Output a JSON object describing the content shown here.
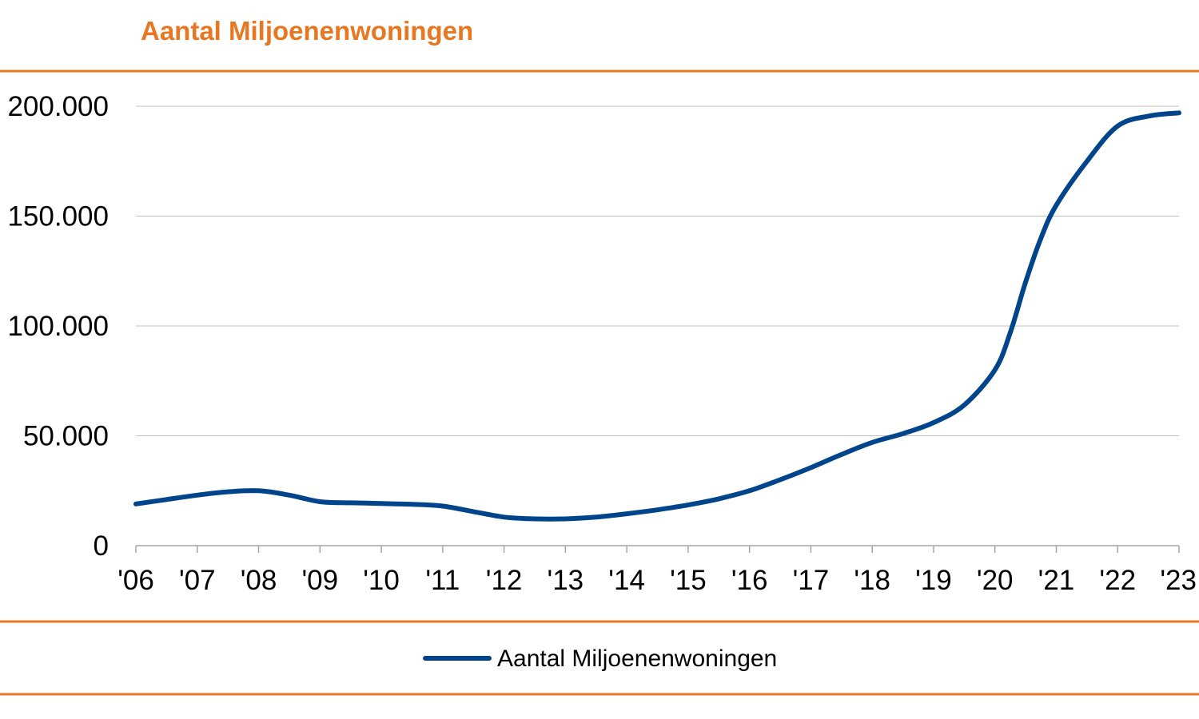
{
  "chart_data": {
    "type": "line",
    "title": "Aantal Miljoenenwoningen",
    "xlabel": "",
    "ylabel": "",
    "categories": [
      "'06",
      "'07",
      "'08",
      "'09",
      "'10",
      "'11",
      "'12",
      "'13",
      "'14",
      "'15",
      "'16",
      "'17",
      "'18",
      "'19",
      "'20",
      "'21",
      "'22",
      "'23"
    ],
    "x": [
      2006,
      2006.5,
      2007,
      2007.5,
      2008,
      2008.5,
      2009,
      2009.5,
      2010,
      2010.5,
      2011,
      2011.5,
      2012,
      2012.5,
      2013,
      2013.5,
      2014,
      2014.5,
      2015,
      2015.5,
      2016,
      2016.5,
      2017,
      2017.5,
      2018,
      2018.5,
      2019,
      2019.5,
      2020,
      2020.25,
      2020.5,
      2020.75,
      2021,
      2021.5,
      2022,
      2022.5,
      2023
    ],
    "series": [
      {
        "name": "Aantal Miljoenenwoningen",
        "color": "#00458B",
        "values": [
          19000,
          21000,
          23000,
          24500,
          25000,
          23000,
          20000,
          19500,
          19200,
          18800,
          18000,
          15500,
          13000,
          12200,
          12200,
          13000,
          14500,
          16300,
          18500,
          21300,
          25000,
          30000,
          35500,
          41500,
          47000,
          51000,
          56000,
          64000,
          80000,
          97000,
          120000,
          140000,
          155000,
          175000,
          191000,
          195500,
          197000
        ]
      }
    ],
    "yticks": [
      "0",
      "50.000",
      "100.000",
      "150.000",
      "200.000"
    ],
    "ylim": [
      0,
      200000
    ],
    "xlim": [
      2006,
      2023
    ],
    "grid": true,
    "legend_position": "bottom-center",
    "colors": {
      "title": "#E87722",
      "rules": "#E87722",
      "line": "#00458B",
      "grid": "#BFBFBF",
      "axis": "#A6A6A6"
    }
  }
}
